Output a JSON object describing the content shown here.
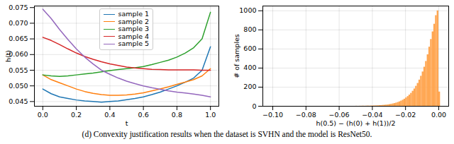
{
  "caption": "(d) Convexity justification results when the dataset is SVHN and the model is ResNet50.",
  "chart_data": [
    {
      "type": "line",
      "x_label": "t",
      "y_label": "h(t)",
      "x": [
        0,
        0.05,
        0.1,
        0.15,
        0.2,
        0.25,
        0.3,
        0.35,
        0.4,
        0.45,
        0.5,
        0.55,
        0.6,
        0.65,
        0.7,
        0.75,
        0.8,
        0.85,
        0.9,
        0.95,
        1
      ],
      "series": [
        {
          "name": "sample 1",
          "color": "#1f77b4",
          "values": [
            0.049,
            0.0475,
            0.0465,
            0.046,
            0.0455,
            0.0452,
            0.045,
            0.0448,
            0.045,
            0.0452,
            0.0456,
            0.046,
            0.0465,
            0.0472,
            0.048,
            0.049,
            0.05,
            0.0512,
            0.0525,
            0.055,
            0.0625
          ]
        },
        {
          "name": "sample 2",
          "color": "#ff7f0e",
          "values": [
            0.0535,
            0.052,
            0.051,
            0.05,
            0.049,
            0.0482,
            0.0476,
            0.0472,
            0.047,
            0.047,
            0.0471,
            0.0474,
            0.0478,
            0.0484,
            0.049,
            0.0497,
            0.0505,
            0.0512,
            0.052,
            0.0532,
            0.0555
          ]
        },
        {
          "name": "sample 3",
          "color": "#2ca02c",
          "values": [
            0.0535,
            0.0532,
            0.053,
            0.0532,
            0.0535,
            0.0538,
            0.0541,
            0.0545,
            0.0549,
            0.0552,
            0.0555,
            0.0558,
            0.0562,
            0.0568,
            0.0575,
            0.0582,
            0.0592,
            0.0605,
            0.0622,
            0.065,
            0.0735
          ]
        },
        {
          "name": "sample 4",
          "color": "#d62728",
          "values": [
            0.0655,
            0.0645,
            0.0632,
            0.0618,
            0.0605,
            0.0594,
            0.0585,
            0.0577,
            0.057,
            0.0565,
            0.056,
            0.0557,
            0.0555,
            0.0553,
            0.0552,
            0.0551,
            0.0551,
            0.0551,
            0.0551,
            0.055,
            0.055
          ]
        },
        {
          "name": "sample 5",
          "color": "#9467bd",
          "values": [
            0.0745,
            0.0715,
            0.068,
            0.0648,
            0.0618,
            0.0592,
            0.057,
            0.055,
            0.0537,
            0.0525,
            0.0515,
            0.0507,
            0.05,
            0.0494,
            0.0489,
            0.0484,
            0.048,
            0.0477,
            0.0474,
            0.047,
            0.0465
          ]
        }
      ],
      "xlim": [
        -0.05,
        1.05
      ],
      "xticks": [
        {
          "value": 0,
          "label": "0.0"
        },
        0.2,
        0.4,
        0.6,
        0.8,
        {
          "value": 1,
          "label": "1.0"
        }
      ],
      "ylim": [
        0.0435,
        0.0755
      ],
      "yticks": [
        0.045,
        {
          "value": 0.05,
          "label": "0.050"
        },
        0.055,
        {
          "value": 0.06,
          "label": "0.060"
        },
        0.065,
        {
          "value": 0.07,
          "label": "0.070"
        },
        0.075
      ],
      "grid": true,
      "legend": "upper center"
    },
    {
      "type": "histogram",
      "x_label": "h(0.5) − (h(0) + h(1))/2",
      "y_label": "# of samples",
      "color": "#ffa54f",
      "bins": [
        -0.05,
        -0.049,
        -0.048,
        -0.047,
        -0.046,
        -0.045,
        -0.044,
        -0.043,
        -0.042,
        -0.041,
        -0.04,
        -0.039,
        -0.038,
        -0.037,
        -0.036,
        -0.035,
        -0.034,
        -0.033,
        -0.032,
        -0.031,
        -0.03,
        -0.029,
        -0.028,
        -0.027,
        -0.026,
        -0.025,
        -0.024,
        -0.023,
        -0.022,
        -0.021,
        -0.02,
        -0.019,
        -0.018,
        -0.017,
        -0.016,
        -0.015,
        -0.014,
        -0.013,
        -0.012,
        -0.011,
        -0.01,
        -0.009,
        -0.008,
        -0.007,
        -0.006,
        -0.005,
        -0.004,
        -0.003,
        -0.002,
        -0.001,
        0,
        0.001
      ],
      "values": [
        1,
        0,
        1,
        1,
        2,
        1,
        2,
        3,
        2,
        3,
        4,
        4,
        5,
        6,
        7,
        8,
        10,
        11,
        13,
        15,
        18,
        21,
        25,
        29,
        34,
        40,
        47,
        55,
        64,
        75,
        88,
        102,
        118,
        136,
        158,
        182,
        210,
        240,
        275,
        315,
        360,
        410,
        470,
        540,
        620,
        700,
        780,
        860,
        950,
        1000,
        150
      ],
      "xlim": [
        -0.106,
        0.006
      ],
      "xticks": [
        {
          "value": -0.1,
          "label": "−0.10"
        },
        {
          "value": -0.08,
          "label": "−0.08"
        },
        {
          "value": -0.06,
          "label": "−0.06"
        },
        {
          "value": -0.04,
          "label": "−0.04"
        },
        {
          "value": -0.02,
          "label": "−0.02"
        },
        {
          "value": 0,
          "label": "0.00"
        }
      ],
      "ylim": [
        0,
        1050
      ],
      "yticks": [
        0,
        200,
        400,
        600,
        800,
        1000
      ],
      "grid": true
    }
  ]
}
